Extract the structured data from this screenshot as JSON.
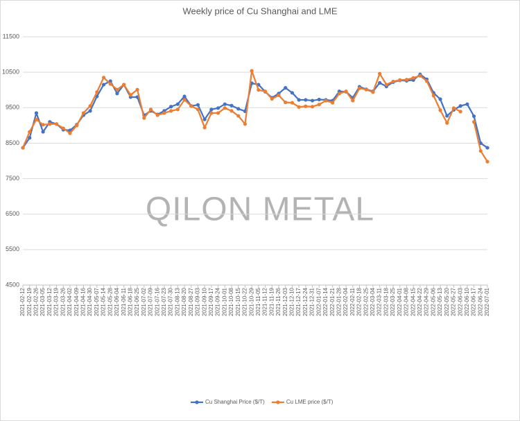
{
  "chart_data": {
    "type": "line",
    "title": "Weekly price of Cu Shanghai and LME",
    "watermark": "QILON METAL",
    "categories": [
      "2021-02-12",
      "2021-02-19",
      "2021-02-26",
      "2021-03-05",
      "2021-03-12",
      "2021-03-19",
      "2021-03-26",
      "2021-04-02",
      "2021-04-09",
      "2021-04-16",
      "2021-04-30",
      "2021-05-07",
      "2021-05-14",
      "2021-05-28",
      "2021-06-04",
      "2021-06-11",
      "2021-06-18",
      "2021-06-25",
      "2021-07-02",
      "2021-07-09",
      "2021-07-16",
      "2021-07-23",
      "2021-07-30",
      "2021-08-13",
      "2021-08-20",
      "2021-08-27",
      "2021-09-03",
      "2021-09-10",
      "2021-09-17",
      "2021-09-24",
      "2021-10-01",
      "2021-10-08",
      "2021-10-15",
      "2021-10-22",
      "2021-10-29",
      "2021-11-05",
      "2021-11-12",
      "2021-11-19",
      "2021-11-26",
      "2021-12-03",
      "2021-12-10",
      "2021-12-17",
      "2021-12-24",
      "2021-12-31",
      "2022-01-07",
      "2022-01-14",
      "2022-01-21",
      "2022-01-28",
      "2022-02-04",
      "2022-02-11",
      "2022-02-18",
      "2022-02-25",
      "2022-03-04",
      "2022-03-11",
      "2022-03-18",
      "2022-03-25",
      "2022-04-01",
      "2022-04-08",
      "2022-04-15",
      "2022-04-22",
      "2022-04-29",
      "2022-05-06",
      "2022-05-13",
      "2022-05-20",
      "2022-05-27",
      "2022-06-03",
      "2022-06-10",
      "2022-06-17",
      "2022-06-24",
      "2022-07-01"
    ],
    "series": [
      {
        "name": "Cu Shanghai Price ($/T)",
        "color": "#4472c4",
        "values": [
          8370,
          8650,
          9350,
          8820,
          9100,
          9040,
          8880,
          8860,
          9020,
          9290,
          9410,
          9820,
          10150,
          10250,
          9900,
          10150,
          9800,
          9800,
          9290,
          9410,
          9310,
          9410,
          9530,
          9600,
          9820,
          9550,
          9580,
          9170,
          9450,
          9490,
          9600,
          9560,
          9470,
          9400,
          10190,
          10150,
          9950,
          9780,
          9900,
          10060,
          9920,
          9720,
          9720,
          9700,
          9730,
          9720,
          9700,
          9960,
          9950,
          9780,
          10090,
          10020,
          9960,
          10200,
          10100,
          10220,
          10270,
          10260,
          10280,
          10440,
          10300,
          9920,
          9740,
          9270,
          9440,
          9550,
          9600,
          9260,
          8500,
          8370
        ]
      },
      {
        "name": "Cu LME price ($/T)",
        "color": "#ed7d31",
        "values": [
          8370,
          8820,
          9170,
          9020,
          9040,
          9040,
          8920,
          8780,
          9000,
          9350,
          9550,
          9940,
          10350,
          10170,
          10010,
          10150,
          9860,
          10010,
          9210,
          9450,
          9290,
          9350,
          9410,
          9450,
          9720,
          9550,
          9450,
          8940,
          9350,
          9350,
          9490,
          9410,
          9270,
          9040,
          10540,
          10000,
          9960,
          9750,
          9850,
          9650,
          9640,
          9520,
          9540,
          9530,
          9590,
          9700,
          9640,
          9900,
          9960,
          9700,
          10050,
          10010,
          9940,
          10460,
          10150,
          10240,
          10280,
          10290,
          10340,
          10400,
          10250,
          9840,
          9430,
          9070,
          9490,
          9390,
          null,
          9100,
          8280,
          7980
        ]
      }
    ],
    "ylim": [
      4500,
      11500
    ],
    "yticks": [
      4500,
      5500,
      6500,
      7500,
      8500,
      9500,
      10500,
      11500
    ],
    "grid": true,
    "legend": "bottom"
  }
}
